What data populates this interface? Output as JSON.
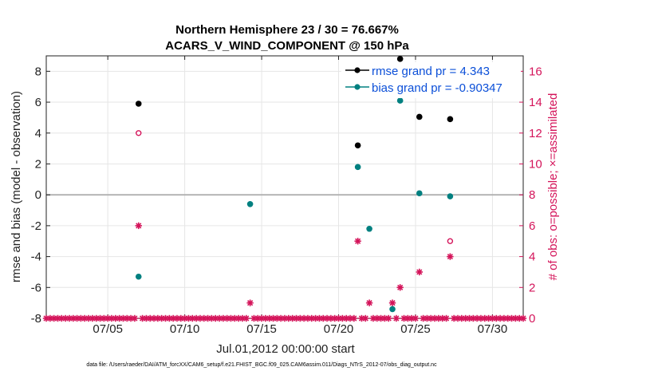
{
  "chart_data": {
    "type": "scatter",
    "title": [
      "Northern Hemisphere 23 / 30 = 76.667%",
      "ACARS_V_WIND_COMPONENT @ 150 hPa"
    ],
    "xlabel": "Jul.01,2012 00:00:00 start",
    "ylabel_left": "rmse and bias (model - observation)",
    "ylabel_right": "# of obs: o=possible; ×=assimilated",
    "footnote": "data file: /Users/raeder/DAI/ATM_forcXX/CAM6_setup/f.e21.FHIST_BGC.f09_025.CAM6assim.011/Diags_NTrS_2012-07/obs_diag_output.nc",
    "x_unit": "day of July 2012",
    "xlim": [
      1,
      32
    ],
    "ylim_left": [
      -8,
      9
    ],
    "ylim_right": [
      0,
      17
    ],
    "grid": true,
    "legend_position": "top-right",
    "colors": {
      "rmse": "#000000",
      "bias": "#008080",
      "obs": "#d4145a",
      "zero_line": "#b0b0b0",
      "legend_text": "#0b4fd8"
    },
    "x_ticks": [
      {
        "value": 5,
        "label": "07/05"
      },
      {
        "value": 10,
        "label": "07/10"
      },
      {
        "value": 15,
        "label": "07/15"
      },
      {
        "value": 20,
        "label": "07/20"
      },
      {
        "value": 25,
        "label": "07/25"
      },
      {
        "value": 30,
        "label": "07/30"
      }
    ],
    "y_ticks_left": [
      -8,
      -6,
      -4,
      -2,
      0,
      2,
      4,
      6,
      8
    ],
    "y_ticks_right": [
      0,
      2,
      4,
      6,
      8,
      10,
      12,
      14,
      16
    ],
    "series": [
      {
        "name": "rmse grand pr = 4.343",
        "key": "rmse",
        "points": [
          {
            "x": 7.0,
            "y": 5.9
          },
          {
            "x": 21.25,
            "y": 3.2
          },
          {
            "x": 24.0,
            "y": 8.8
          },
          {
            "x": 25.25,
            "y": 5.05
          },
          {
            "x": 27.25,
            "y": 4.9
          }
        ]
      },
      {
        "name": "bias grand pr = -0.90347",
        "key": "bias",
        "points": [
          {
            "x": 7.0,
            "y": -5.3
          },
          {
            "x": 14.25,
            "y": -0.6
          },
          {
            "x": 21.25,
            "y": 1.8
          },
          {
            "x": 22.0,
            "y": -2.2
          },
          {
            "x": 23.5,
            "y": -7.4
          },
          {
            "x": 24.0,
            "y": 6.1
          },
          {
            "x": 25.25,
            "y": 0.1
          },
          {
            "x": 27.25,
            "y": -0.1
          }
        ]
      }
    ],
    "obs_possible": [
      {
        "x": 7.0,
        "y": 12
      },
      {
        "x": 27.25,
        "y": 5
      }
    ],
    "obs_assimilated": {
      "x_start": 1.0,
      "x_step": 0.25,
      "nonzero": [
        {
          "x": 7.0,
          "y": 6
        },
        {
          "x": 14.25,
          "y": 1
        },
        {
          "x": 21.25,
          "y": 5
        },
        {
          "x": 22.0,
          "y": 1
        },
        {
          "x": 23.5,
          "y": 1
        },
        {
          "x": 24.0,
          "y": 2
        },
        {
          "x": 25.25,
          "y": 3
        },
        {
          "x": 27.25,
          "y": 4
        }
      ]
    }
  }
}
